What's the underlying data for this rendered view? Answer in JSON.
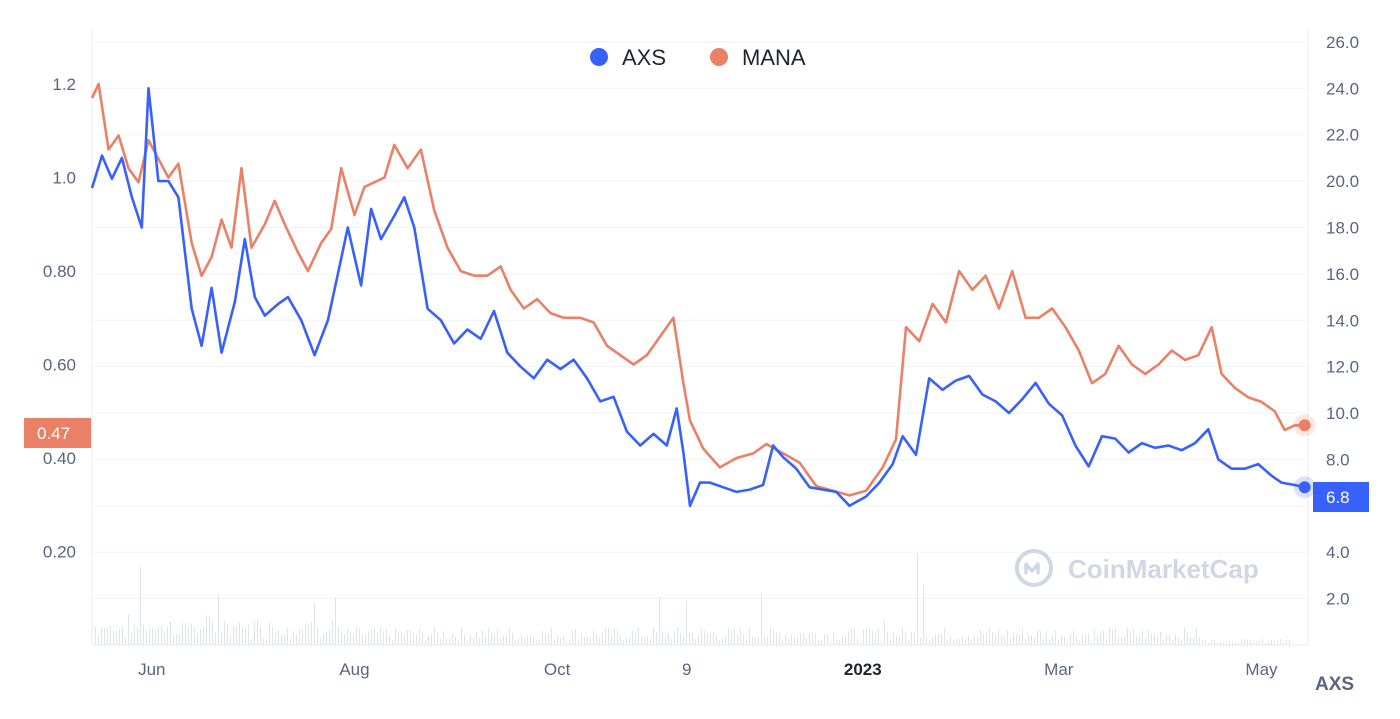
{
  "chart_data": {
    "type": "line",
    "watermark": "CoinMarketCap",
    "right_axis_unit": "AXS",
    "x_tick_labels": [
      "Jun",
      "Aug",
      "Oct",
      "9",
      "2023",
      "Mar",
      "May"
    ],
    "x_tick_dates": [
      "2022-06-01",
      "2022-08-01",
      "2022-10-01",
      "2022-11-09",
      "2023-01-01",
      "2023-03-01",
      "2023-05-01"
    ],
    "x_range": [
      "2022-05-14",
      "2023-05-15"
    ],
    "left_axis": {
      "series": "MANA",
      "ticks": [
        "0.20",
        "0.40",
        "0.60",
        "0.80",
        "1.0",
        "1.2"
      ],
      "ylim": [
        0.0,
        1.32
      ]
    },
    "right_axis": {
      "series": "AXS",
      "ticks": [
        "2.0",
        "4.0",
        "6.0",
        "8.0",
        "10.0",
        "12.0",
        "14.0",
        "16.0",
        "18.0",
        "20.0",
        "22.0",
        "24.0",
        "26.0"
      ],
      "ylim": [
        0.0,
        26.6
      ]
    },
    "current_values": {
      "MANA": "0.47",
      "AXS": "6.8"
    },
    "grid": true,
    "legend": "top-center",
    "series": [
      {
        "name": "AXS",
        "color": "#3861fb",
        "axis": "right",
        "points": [
          [
            "2022-05-14",
            19.7
          ],
          [
            "2022-05-17",
            21.1
          ],
          [
            "2022-05-20",
            20.1
          ],
          [
            "2022-05-23",
            21.0
          ],
          [
            "2022-05-26",
            19.3
          ],
          [
            "2022-05-29",
            18.0
          ],
          [
            "2022-05-31",
            24.0
          ],
          [
            "2022-06-03",
            20.0
          ],
          [
            "2022-06-06",
            20.0
          ],
          [
            "2022-06-09",
            19.3
          ],
          [
            "2022-06-13",
            14.5
          ],
          [
            "2022-06-16",
            12.9
          ],
          [
            "2022-06-19",
            15.4
          ],
          [
            "2022-06-22",
            12.6
          ],
          [
            "2022-06-26",
            14.8
          ],
          [
            "2022-06-29",
            17.5
          ],
          [
            "2022-07-02",
            15.0
          ],
          [
            "2022-07-05",
            14.2
          ],
          [
            "2022-07-09",
            14.7
          ],
          [
            "2022-07-12",
            15.0
          ],
          [
            "2022-07-16",
            14.0
          ],
          [
            "2022-07-20",
            12.5
          ],
          [
            "2022-07-24",
            14.0
          ],
          [
            "2022-07-27",
            16.0
          ],
          [
            "2022-07-30",
            18.0
          ],
          [
            "2022-08-03",
            15.5
          ],
          [
            "2022-08-06",
            18.8
          ],
          [
            "2022-08-09",
            17.5
          ],
          [
            "2022-08-13",
            18.5
          ],
          [
            "2022-08-16",
            19.3
          ],
          [
            "2022-08-19",
            18.0
          ],
          [
            "2022-08-23",
            14.5
          ],
          [
            "2022-08-27",
            14.0
          ],
          [
            "2022-08-31",
            13.0
          ],
          [
            "2022-09-04",
            13.6
          ],
          [
            "2022-09-08",
            13.2
          ],
          [
            "2022-09-12",
            14.4
          ],
          [
            "2022-09-16",
            12.6
          ],
          [
            "2022-09-20",
            12.0
          ],
          [
            "2022-09-24",
            11.5
          ],
          [
            "2022-09-28",
            12.3
          ],
          [
            "2022-10-02",
            11.9
          ],
          [
            "2022-10-06",
            12.3
          ],
          [
            "2022-10-10",
            11.5
          ],
          [
            "2022-10-14",
            10.5
          ],
          [
            "2022-10-18",
            10.7
          ],
          [
            "2022-10-22",
            9.2
          ],
          [
            "2022-10-26",
            8.6
          ],
          [
            "2022-10-30",
            9.1
          ],
          [
            "2022-11-03",
            8.6
          ],
          [
            "2022-11-06",
            10.2
          ],
          [
            "2022-11-08",
            8.3
          ],
          [
            "2022-11-10",
            6.0
          ],
          [
            "2022-11-13",
            7.0
          ],
          [
            "2022-11-16",
            7.0
          ],
          [
            "2022-11-20",
            6.8
          ],
          [
            "2022-11-24",
            6.6
          ],
          [
            "2022-11-28",
            6.7
          ],
          [
            "2022-12-02",
            6.9
          ],
          [
            "2022-12-05",
            8.6
          ],
          [
            "2022-12-08",
            8.1
          ],
          [
            "2022-12-12",
            7.6
          ],
          [
            "2022-12-16",
            6.8
          ],
          [
            "2022-12-20",
            6.7
          ],
          [
            "2022-12-24",
            6.6
          ],
          [
            "2022-12-28",
            6.0
          ],
          [
            "2023-01-02",
            6.4
          ],
          [
            "2023-01-06",
            7.0
          ],
          [
            "2023-01-10",
            7.8
          ],
          [
            "2023-01-13",
            9.0
          ],
          [
            "2023-01-17",
            8.2
          ],
          [
            "2023-01-21",
            11.5
          ],
          [
            "2023-01-25",
            11.0
          ],
          [
            "2023-01-29",
            11.4
          ],
          [
            "2023-02-02",
            11.6
          ],
          [
            "2023-02-06",
            10.8
          ],
          [
            "2023-02-10",
            10.5
          ],
          [
            "2023-02-14",
            10.0
          ],
          [
            "2023-02-18",
            10.6
          ],
          [
            "2023-02-22",
            11.3
          ],
          [
            "2023-02-26",
            10.4
          ],
          [
            "2023-03-02",
            9.9
          ],
          [
            "2023-03-06",
            8.6
          ],
          [
            "2023-03-10",
            7.7
          ],
          [
            "2023-03-14",
            9.0
          ],
          [
            "2023-03-18",
            8.9
          ],
          [
            "2023-03-22",
            8.3
          ],
          [
            "2023-03-26",
            8.7
          ],
          [
            "2023-03-30",
            8.5
          ],
          [
            "2023-04-03",
            8.6
          ],
          [
            "2023-04-07",
            8.4
          ],
          [
            "2023-04-11",
            8.7
          ],
          [
            "2023-04-15",
            9.3
          ],
          [
            "2023-04-18",
            8.0
          ],
          [
            "2023-04-22",
            7.6
          ],
          [
            "2023-04-26",
            7.6
          ],
          [
            "2023-04-30",
            7.8
          ],
          [
            "2023-05-04",
            7.3
          ],
          [
            "2023-05-07",
            7.0
          ],
          [
            "2023-05-11",
            6.9
          ],
          [
            "2023-05-14",
            6.8
          ]
        ]
      },
      {
        "name": "MANA",
        "color": "#ea8166",
        "axis": "left",
        "points": [
          [
            "2022-05-14",
            1.17
          ],
          [
            "2022-05-16",
            1.2
          ],
          [
            "2022-05-19",
            1.06
          ],
          [
            "2022-05-22",
            1.09
          ],
          [
            "2022-05-25",
            1.02
          ],
          [
            "2022-05-28",
            0.99
          ],
          [
            "2022-05-31",
            1.08
          ],
          [
            "2022-06-03",
            1.04
          ],
          [
            "2022-06-06",
            1.0
          ],
          [
            "2022-06-09",
            1.03
          ],
          [
            "2022-06-13",
            0.86
          ],
          [
            "2022-06-16",
            0.79
          ],
          [
            "2022-06-19",
            0.83
          ],
          [
            "2022-06-22",
            0.91
          ],
          [
            "2022-06-25",
            0.85
          ],
          [
            "2022-06-28",
            1.02
          ],
          [
            "2022-07-01",
            0.85
          ],
          [
            "2022-07-05",
            0.9
          ],
          [
            "2022-07-08",
            0.95
          ],
          [
            "2022-07-11",
            0.9
          ],
          [
            "2022-07-15",
            0.84
          ],
          [
            "2022-07-18",
            0.8
          ],
          [
            "2022-07-22",
            0.86
          ],
          [
            "2022-07-25",
            0.89
          ],
          [
            "2022-07-28",
            1.02
          ],
          [
            "2022-08-01",
            0.92
          ],
          [
            "2022-08-04",
            0.98
          ],
          [
            "2022-08-07",
            0.99
          ],
          [
            "2022-08-10",
            1.0
          ],
          [
            "2022-08-13",
            1.07
          ],
          [
            "2022-08-17",
            1.02
          ],
          [
            "2022-08-21",
            1.06
          ],
          [
            "2022-08-25",
            0.93
          ],
          [
            "2022-08-29",
            0.85
          ],
          [
            "2022-09-02",
            0.8
          ],
          [
            "2022-09-06",
            0.79
          ],
          [
            "2022-09-10",
            0.79
          ],
          [
            "2022-09-14",
            0.81
          ],
          [
            "2022-09-17",
            0.76
          ],
          [
            "2022-09-21",
            0.72
          ],
          [
            "2022-09-25",
            0.74
          ],
          [
            "2022-09-29",
            0.71
          ],
          [
            "2022-10-03",
            0.7
          ],
          [
            "2022-10-08",
            0.7
          ],
          [
            "2022-10-12",
            0.69
          ],
          [
            "2022-10-16",
            0.64
          ],
          [
            "2022-10-20",
            0.62
          ],
          [
            "2022-10-24",
            0.6
          ],
          [
            "2022-10-28",
            0.62
          ],
          [
            "2022-11-01",
            0.66
          ],
          [
            "2022-11-05",
            0.7
          ],
          [
            "2022-11-08",
            0.56
          ],
          [
            "2022-11-10",
            0.48
          ],
          [
            "2022-11-14",
            0.42
          ],
          [
            "2022-11-19",
            0.38
          ],
          [
            "2022-11-24",
            0.4
          ],
          [
            "2022-11-29",
            0.41
          ],
          [
            "2022-12-03",
            0.43
          ],
          [
            "2022-12-08",
            0.41
          ],
          [
            "2022-12-13",
            0.39
          ],
          [
            "2022-12-18",
            0.34
          ],
          [
            "2022-12-23",
            0.33
          ],
          [
            "2022-12-28",
            0.32
          ],
          [
            "2023-01-02",
            0.33
          ],
          [
            "2023-01-07",
            0.38
          ],
          [
            "2023-01-11",
            0.44
          ],
          [
            "2023-01-14",
            0.68
          ],
          [
            "2023-01-18",
            0.65
          ],
          [
            "2023-01-22",
            0.73
          ],
          [
            "2023-01-26",
            0.69
          ],
          [
            "2023-01-30",
            0.8
          ],
          [
            "2023-02-03",
            0.76
          ],
          [
            "2023-02-07",
            0.79
          ],
          [
            "2023-02-11",
            0.72
          ],
          [
            "2023-02-15",
            0.8
          ],
          [
            "2023-02-19",
            0.7
          ],
          [
            "2023-02-23",
            0.7
          ],
          [
            "2023-02-27",
            0.72
          ],
          [
            "2023-03-03",
            0.68
          ],
          [
            "2023-03-07",
            0.63
          ],
          [
            "2023-03-11",
            0.56
          ],
          [
            "2023-03-15",
            0.58
          ],
          [
            "2023-03-19",
            0.64
          ],
          [
            "2023-03-23",
            0.6
          ],
          [
            "2023-03-27",
            0.58
          ],
          [
            "2023-03-31",
            0.6
          ],
          [
            "2023-04-04",
            0.63
          ],
          [
            "2023-04-08",
            0.61
          ],
          [
            "2023-04-12",
            0.62
          ],
          [
            "2023-04-16",
            0.68
          ],
          [
            "2023-04-19",
            0.58
          ],
          [
            "2023-04-23",
            0.55
          ],
          [
            "2023-04-27",
            0.53
          ],
          [
            "2023-05-01",
            0.52
          ],
          [
            "2023-05-05",
            0.5
          ],
          [
            "2023-05-08",
            0.46
          ],
          [
            "2023-05-11",
            0.47
          ],
          [
            "2023-05-14",
            0.47
          ]
        ]
      }
    ]
  }
}
